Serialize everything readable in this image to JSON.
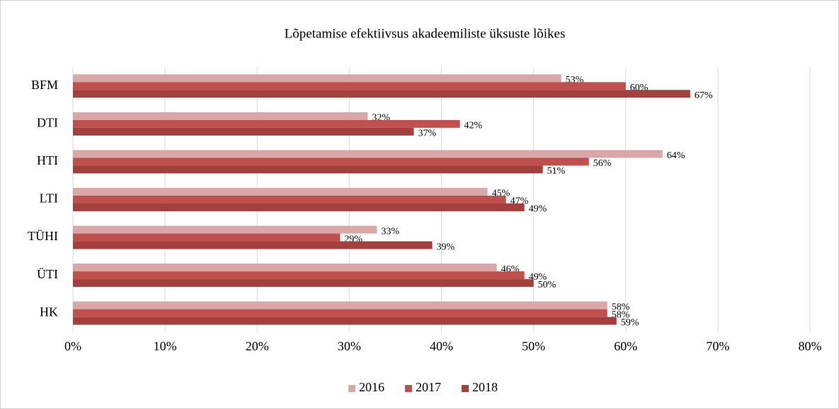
{
  "chart_data": {
    "type": "hbar",
    "title": "Lõpetamise efektiivsus akadeemiliste üksuste lõikes",
    "categories": [
      "BFM",
      "DTI",
      "HTI",
      "LTI",
      "TÜHI",
      "ÜTI",
      "HK"
    ],
    "series": [
      {
        "name": "2016",
        "color": "#d9a7a6",
        "values": [
          53,
          32,
          64,
          45,
          33,
          46,
          58
        ],
        "value_labels": [
          "53%",
          "32%",
          "64%",
          "45%",
          "33%",
          "46%",
          "58%"
        ]
      },
      {
        "name": "2017",
        "color": "#c0504d",
        "values": [
          60,
          42,
          56,
          47,
          29,
          49,
          58
        ],
        "value_labels": [
          "60%",
          "42%",
          "56%",
          "47%",
          "29%",
          "49%",
          "58%"
        ]
      },
      {
        "name": "2018",
        "color": "#a33f3d",
        "values": [
          67,
          37,
          51,
          49,
          39,
          50,
          59
        ],
        "value_labels": [
          "67%",
          "37%",
          "51%",
          "49%",
          "39%",
          "50%",
          "59%"
        ]
      }
    ],
    "xlim": [
      0,
      80
    ],
    "xticks": [
      {
        "value": 0,
        "label": "0%"
      },
      {
        "value": 10,
        "label": "10%"
      },
      {
        "value": 20,
        "label": "20%"
      },
      {
        "value": 30,
        "label": "30%"
      },
      {
        "value": 40,
        "label": "40%"
      },
      {
        "value": 50,
        "label": "50%"
      },
      {
        "value": 60,
        "label": "60%"
      },
      {
        "value": 70,
        "label": "70%"
      },
      {
        "value": 80,
        "label": "80%"
      }
    ],
    "grid": true,
    "legend": "bottom"
  }
}
